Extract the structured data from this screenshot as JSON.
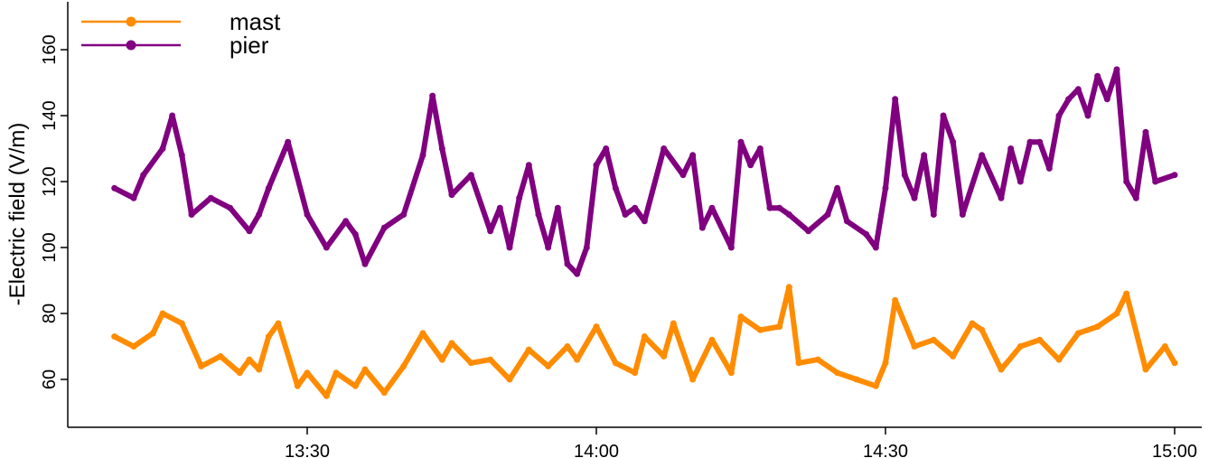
{
  "chart_data": {
    "type": "scatter",
    "title": "",
    "xlabel": "",
    "ylabel": "-Electric field (V/m)",
    "xlim": [
      "13:10",
      "15:01"
    ],
    "ylim": [
      43,
      175
    ],
    "x_ticks": [
      "13:30",
      "14:00",
      "14:30",
      "15:00"
    ],
    "y_ticks": [
      60,
      80,
      100,
      120,
      140,
      160
    ],
    "grid": false,
    "legend_position": "top-left",
    "series": [
      {
        "name": "mast",
        "color": "#FF8C00",
        "x": [
          "13:10",
          "13:12",
          "13:14",
          "13:15",
          "13:17",
          "13:19",
          "13:21",
          "13:23",
          "13:24",
          "13:25",
          "13:26",
          "13:27",
          "13:29",
          "13:30",
          "13:32",
          "13:33",
          "13:35",
          "13:36",
          "13:38",
          "13:40",
          "13:42",
          "13:44",
          "13:45",
          "13:47",
          "13:49",
          "13:51",
          "13:53",
          "13:55",
          "13:57",
          "13:58",
          "14:00",
          "14:02",
          "14:04",
          "14:05",
          "14:07",
          "14:08",
          "14:10",
          "14:12",
          "14:14",
          "14:15",
          "14:17",
          "14:19",
          "14:20",
          "14:21",
          "14:23",
          "14:25",
          "14:27",
          "14:29",
          "14:30",
          "14:31",
          "14:33",
          "14:35",
          "14:37",
          "14:39",
          "14:40",
          "14:42",
          "14:44",
          "14:46",
          "14:48",
          "14:50",
          "14:52",
          "14:54",
          "14:55",
          "14:57",
          "14:59",
          "15:00"
        ],
        "y": [
          73,
          70,
          74,
          80,
          77,
          64,
          67,
          62,
          66,
          63,
          73,
          77,
          58,
          62,
          55,
          62,
          58,
          63,
          56,
          64,
          74,
          66,
          71,
          65,
          66,
          60,
          69,
          64,
          70,
          66,
          76,
          65,
          62,
          73,
          67,
          77,
          60,
          72,
          62,
          79,
          75,
          76,
          88,
          65,
          66,
          62,
          60,
          58,
          65,
          84,
          70,
          72,
          67,
          77,
          75,
          63,
          70,
          72,
          66,
          74,
          76,
          80,
          86,
          63,
          70,
          65
        ]
      },
      {
        "name": "pier",
        "color": "#800080",
        "x": [
          "13:10",
          "13:12",
          "13:13",
          "13:15",
          "13:16",
          "13:17",
          "13:18",
          "13:20",
          "13:22",
          "13:24",
          "13:25",
          "13:26",
          "13:28",
          "13:30",
          "13:32",
          "13:34",
          "13:35",
          "13:36",
          "13:38",
          "13:40",
          "13:42",
          "13:43",
          "13:44",
          "13:45",
          "13:47",
          "13:49",
          "13:50",
          "13:51",
          "13:52",
          "13:53",
          "13:54",
          "13:55",
          "13:56",
          "13:57",
          "13:58",
          "13:59",
          "14:00",
          "14:01",
          "14:02",
          "14:03",
          "14:04",
          "14:05",
          "14:07",
          "14:09",
          "14:10",
          "14:11",
          "14:12",
          "14:14",
          "14:15",
          "14:16",
          "14:17",
          "14:18",
          "14:19",
          "14:20",
          "14:22",
          "14:24",
          "14:25",
          "14:26",
          "14:28",
          "14:29",
          "14:30",
          "14:31",
          "14:32",
          "14:33",
          "14:34",
          "14:35",
          "14:36",
          "14:37",
          "14:38",
          "14:40",
          "14:42",
          "14:43",
          "14:44",
          "14:45",
          "14:46",
          "14:47",
          "14:48",
          "14:49",
          "14:50",
          "14:51",
          "14:52",
          "14:53",
          "14:54",
          "14:55",
          "14:56",
          "14:57",
          "14:58",
          "15:00"
        ],
        "y": [
          118,
          115,
          122,
          130,
          140,
          128,
          110,
          115,
          112,
          105,
          110,
          118,
          132,
          110,
          100,
          108,
          104,
          95,
          106,
          110,
          128,
          146,
          130,
          116,
          122,
          105,
          112,
          100,
          115,
          125,
          110,
          100,
          112,
          95,
          92,
          100,
          125,
          130,
          118,
          110,
          112,
          108,
          130,
          122,
          128,
          106,
          112,
          100,
          132,
          125,
          130,
          112,
          112,
          110,
          105,
          110,
          118,
          108,
          104,
          100,
          118,
          145,
          122,
          115,
          128,
          110,
          140,
          132,
          110,
          128,
          115,
          130,
          120,
          132,
          132,
          124,
          140,
          145,
          148,
          140,
          152,
          145,
          154,
          120,
          115,
          135,
          120,
          122
        ]
      }
    ]
  }
}
